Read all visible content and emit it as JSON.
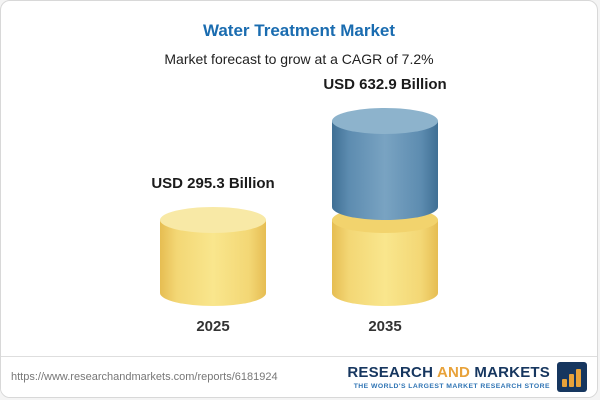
{
  "header": {
    "title": "Water Treatment Market",
    "subtitle": "Market forecast to grow at a CAGR of 7.2%"
  },
  "chart_data": {
    "type": "bar",
    "categories": [
      "2025",
      "2035"
    ],
    "values": [
      295.3,
      632.9
    ],
    "value_labels": [
      "USD 295.3 Billion",
      "USD 632.9 Billion"
    ],
    "unit": "USD Billion",
    "title": "Water Treatment Market",
    "subtitle_cagr": "7.2%",
    "stacked_2035": {
      "base": 295.3,
      "growth": 337.6
    },
    "colors": {
      "base_yellow": "#f3d775",
      "growth_blue": "#5d8cb0"
    },
    "legend": "none",
    "grid": "off"
  },
  "footer": {
    "url": "https://www.researchandmarkets.com/reports/6181924",
    "brand": {
      "research": "RESEARCH",
      "and": "AND",
      "markets": "MARKETS",
      "tagline": "THE WORLD'S LARGEST MARKET RESEARCH STORE"
    }
  }
}
